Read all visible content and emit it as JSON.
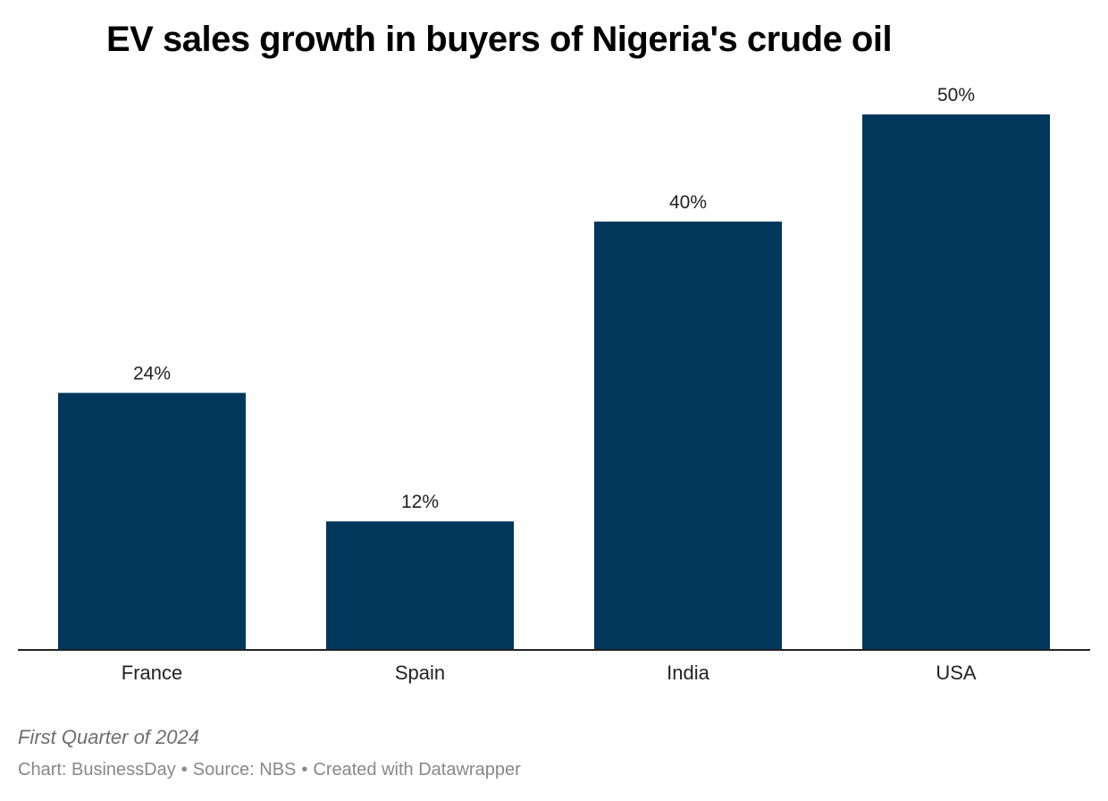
{
  "chart_data": {
    "type": "bar",
    "title": "EV sales growth in buyers of Nigeria's crude oil",
    "categories": [
      "France",
      "Spain",
      "India",
      "USA"
    ],
    "values": [
      24,
      12,
      40,
      50
    ],
    "value_labels": [
      "24%",
      "12%",
      "40%",
      "50%"
    ],
    "unit": "%",
    "xlabel": "",
    "ylabel": "",
    "ylim": [
      0,
      50
    ],
    "grid": false,
    "bar_color": "#02375c",
    "axis_color": "#222222"
  },
  "notes": "First Quarter of 2024",
  "credits": {
    "chart": "Chart: BusinessDay",
    "source": "Source: NBS",
    "tool": "Created with Datawrapper",
    "separator": "•"
  }
}
